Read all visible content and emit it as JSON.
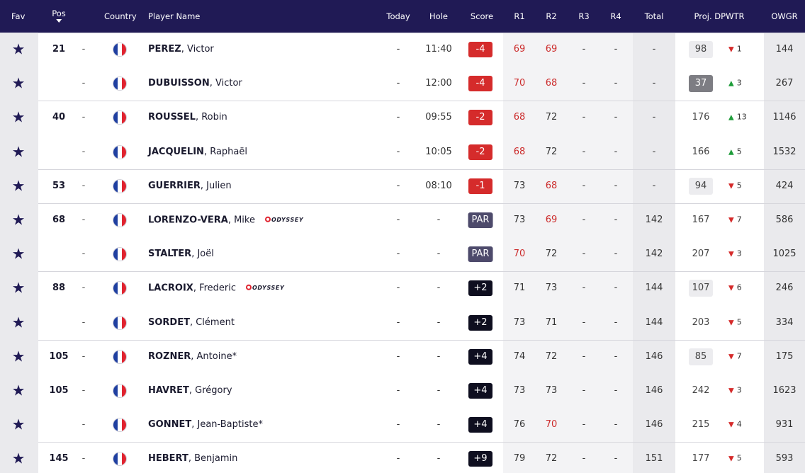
{
  "header": {
    "fav": "Fav",
    "pos": "Pos",
    "country": "Country",
    "player_name": "Player Name",
    "today": "Today",
    "hole": "Hole",
    "score": "Score",
    "r1": "R1",
    "r2": "R2",
    "r3": "R3",
    "r4": "R4",
    "total": "Total",
    "proj_dpwtr": "Proj. DPWTR",
    "owgr": "OWGR"
  },
  "sponsor_label": "ODYSSEY",
  "colors": {
    "header_bg": "#201a55",
    "score_under": "#d52b2b",
    "score_par": "#4d4a6b",
    "score_over": "#0e0e1f",
    "move_up": "#1f9d3a",
    "move_down": "#d52b2b"
  },
  "rows": [
    {
      "pos": "21",
      "move": "-",
      "country": "France",
      "last": "PEREZ",
      "first": ", Victor",
      "sponsor": "",
      "today": "-",
      "hole": "11:40",
      "score": "-4",
      "score_type": "under",
      "r1": "69",
      "r1_red": true,
      "r2": "69",
      "r2_red": true,
      "r3": "-",
      "r4": "-",
      "total": "-",
      "proj": "98",
      "proj_style": "boxed",
      "dir": "down",
      "delta": "1",
      "owgr": "144",
      "group_start": true
    },
    {
      "pos": "",
      "move": "-",
      "country": "France",
      "last": "DUBUISSON",
      "first": ", Victor",
      "sponsor": "",
      "today": "-",
      "hole": "12:00",
      "score": "-4",
      "score_type": "under",
      "r1": "70",
      "r1_red": true,
      "r2": "68",
      "r2_red": true,
      "r3": "-",
      "r4": "-",
      "total": "-",
      "proj": "37",
      "proj_style": "top",
      "dir": "up",
      "delta": "3",
      "owgr": "267",
      "group_start": false
    },
    {
      "pos": "40",
      "move": "-",
      "country": "France",
      "last": "ROUSSEL",
      "first": ", Robin",
      "sponsor": "",
      "today": "-",
      "hole": "09:55",
      "score": "-2",
      "score_type": "under",
      "r1": "68",
      "r1_red": true,
      "r2": "72",
      "r2_red": false,
      "r3": "-",
      "r4": "-",
      "total": "-",
      "proj": "176",
      "proj_style": "plain",
      "dir": "up",
      "delta": "13",
      "owgr": "1146",
      "group_start": true
    },
    {
      "pos": "",
      "move": "-",
      "country": "France",
      "last": "JACQUELIN",
      "first": ", Raphaël",
      "sponsor": "",
      "today": "-",
      "hole": "10:05",
      "score": "-2",
      "score_type": "under",
      "r1": "68",
      "r1_red": true,
      "r2": "72",
      "r2_red": false,
      "r3": "-",
      "r4": "-",
      "total": "-",
      "proj": "166",
      "proj_style": "plain",
      "dir": "up",
      "delta": "5",
      "owgr": "1532",
      "group_start": false
    },
    {
      "pos": "53",
      "move": "-",
      "country": "France",
      "last": "GUERRIER",
      "first": ", Julien",
      "sponsor": "",
      "today": "-",
      "hole": "08:10",
      "score": "-1",
      "score_type": "under",
      "r1": "73",
      "r1_red": false,
      "r2": "68",
      "r2_red": true,
      "r3": "-",
      "r4": "-",
      "total": "-",
      "proj": "94",
      "proj_style": "boxed",
      "dir": "down",
      "delta": "5",
      "owgr": "424",
      "group_start": true
    },
    {
      "pos": "68",
      "move": "-",
      "country": "France",
      "last": "LORENZO-VERA",
      "first": ", Mike",
      "sponsor": "ODYSSEY",
      "today": "-",
      "hole": "-",
      "score": "PAR",
      "score_type": "par",
      "r1": "73",
      "r1_red": false,
      "r2": "69",
      "r2_red": true,
      "r3": "-",
      "r4": "-",
      "total": "142",
      "proj": "167",
      "proj_style": "plain",
      "dir": "down",
      "delta": "7",
      "owgr": "586",
      "group_start": true
    },
    {
      "pos": "",
      "move": "-",
      "country": "France",
      "last": "STALTER",
      "first": ", Joël",
      "sponsor": "",
      "today": "-",
      "hole": "-",
      "score": "PAR",
      "score_type": "par",
      "r1": "70",
      "r1_red": true,
      "r2": "72",
      "r2_red": false,
      "r3": "-",
      "r4": "-",
      "total": "142",
      "proj": "207",
      "proj_style": "plain",
      "dir": "down",
      "delta": "3",
      "owgr": "1025",
      "group_start": false
    },
    {
      "pos": "88",
      "move": "-",
      "country": "France",
      "last": "LACROIX",
      "first": ", Frederic",
      "sponsor": "ODYSSEY",
      "today": "-",
      "hole": "-",
      "score": "+2",
      "score_type": "over",
      "r1": "71",
      "r1_red": false,
      "r2": "73",
      "r2_red": false,
      "r3": "-",
      "r4": "-",
      "total": "144",
      "proj": "107",
      "proj_style": "boxed",
      "dir": "down",
      "delta": "6",
      "owgr": "246",
      "group_start": true
    },
    {
      "pos": "",
      "move": "-",
      "country": "France",
      "last": "SORDET",
      "first": ", Clément",
      "sponsor": "",
      "today": "-",
      "hole": "-",
      "score": "+2",
      "score_type": "over",
      "r1": "73",
      "r1_red": false,
      "r2": "71",
      "r2_red": false,
      "r3": "-",
      "r4": "-",
      "total": "144",
      "proj": "203",
      "proj_style": "plain",
      "dir": "down",
      "delta": "5",
      "owgr": "334",
      "group_start": false
    },
    {
      "pos": "105",
      "move": "-",
      "country": "France",
      "last": "ROZNER",
      "first": ", Antoine*",
      "sponsor": "",
      "today": "-",
      "hole": "-",
      "score": "+4",
      "score_type": "over",
      "r1": "74",
      "r1_red": false,
      "r2": "72",
      "r2_red": false,
      "r3": "-",
      "r4": "-",
      "total": "146",
      "proj": "85",
      "proj_style": "boxed",
      "dir": "down",
      "delta": "7",
      "owgr": "175",
      "group_start": true
    },
    {
      "pos": "105",
      "move": "-",
      "country": "France",
      "last": "HAVRET",
      "first": ", Grégory",
      "sponsor": "",
      "today": "-",
      "hole": "-",
      "score": "+4",
      "score_type": "over",
      "r1": "73",
      "r1_red": false,
      "r2": "73",
      "r2_red": false,
      "r3": "-",
      "r4": "-",
      "total": "146",
      "proj": "242",
      "proj_style": "plain",
      "dir": "down",
      "delta": "3",
      "owgr": "1623",
      "group_start": false
    },
    {
      "pos": "",
      "move": "-",
      "country": "France",
      "last": "GONNET",
      "first": ", Jean-Baptiste*",
      "sponsor": "",
      "today": "-",
      "hole": "-",
      "score": "+4",
      "score_type": "over",
      "r1": "76",
      "r1_red": false,
      "r2": "70",
      "r2_red": true,
      "r3": "-",
      "r4": "-",
      "total": "146",
      "proj": "215",
      "proj_style": "plain",
      "dir": "down",
      "delta": "4",
      "owgr": "931",
      "group_start": false
    },
    {
      "pos": "145",
      "move": "-",
      "country": "France",
      "last": "HEBERT",
      "first": ", Benjamin",
      "sponsor": "",
      "today": "-",
      "hole": "-",
      "score": "+9",
      "score_type": "over",
      "r1": "79",
      "r1_red": false,
      "r2": "72",
      "r2_red": false,
      "r3": "-",
      "r4": "-",
      "total": "151",
      "proj": "177",
      "proj_style": "plain",
      "dir": "down",
      "delta": "5",
      "owgr": "593",
      "group_start": true
    }
  ]
}
